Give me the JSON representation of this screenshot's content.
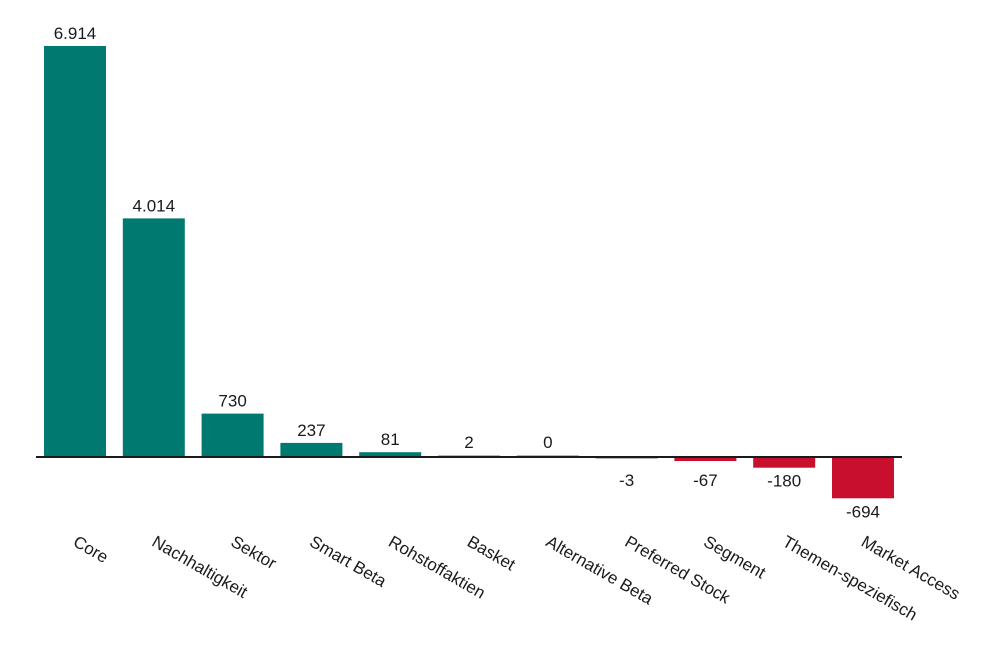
{
  "chart_data": {
    "type": "bar",
    "categories": [
      "Core",
      "Nachhaltigkeit",
      "Sektor",
      "Smart Beta",
      "Rohstoffaktien",
      "Basket",
      "Alternative Beta",
      "Preferred Stock",
      "Segment",
      "Themen-speziefisch",
      "Market Access"
    ],
    "values": [
      6914,
      4014,
      730,
      237,
      81,
      2,
      0,
      -3,
      -67,
      -180,
      -694
    ],
    "value_labels": [
      "6.914",
      "4.014",
      "730",
      "237",
      "81",
      "2",
      "0",
      "-3",
      "-67",
      "-180",
      "-694"
    ],
    "title": "",
    "xlabel": "",
    "ylabel": "",
    "ylim": [
      -700,
      7000
    ],
    "grid": false,
    "legend": "none",
    "colors": {
      "positive": "#007A70",
      "negative": "#C8102E",
      "axis": "#1a1a1a"
    }
  }
}
